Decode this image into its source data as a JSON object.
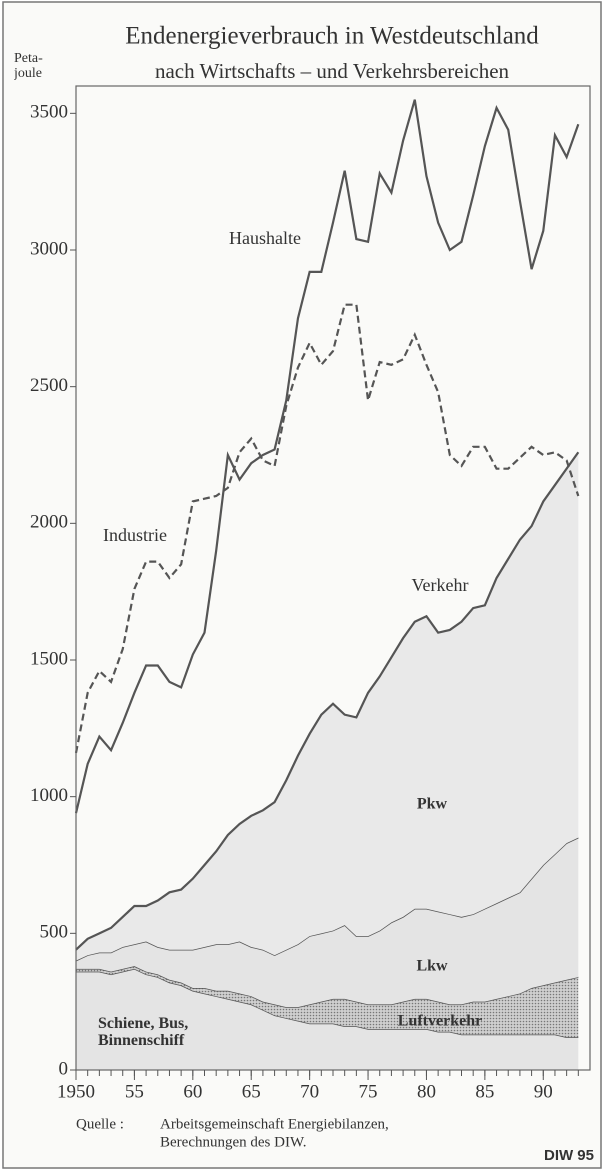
{
  "chart_data": {
    "type": "line",
    "title": "Endenergieverbrauch in Westdeutschland",
    "subtitle": "nach Wirtschafts – und Verkehrsbereichen",
    "y_label": "Peta-joule",
    "source_label": "Quelle :",
    "source": [
      "Arbeitsgemeinschaft Energiebilanzen,",
      "Berechnungen des DIW."
    ],
    "credit": "DIW 95",
    "xlim": [
      1950,
      1994
    ],
    "xticks": [
      1950,
      {
        "value": 1955,
        "label": "55"
      },
      {
        "value": 1960,
        "label": "60"
      },
      {
        "value": 1965,
        "label": "65"
      },
      {
        "value": 1970,
        "label": "70"
      },
      {
        "value": 1975,
        "label": "75"
      },
      {
        "value": 1980,
        "label": "80"
      },
      {
        "value": 1985,
        "label": "85"
      },
      {
        "value": 1990,
        "label": "90"
      }
    ],
    "ylim": [
      0,
      3600
    ],
    "yticks": [
      0,
      500,
      1000,
      1500,
      2000,
      2500,
      3000,
      3500
    ],
    "x": [
      1950,
      1951,
      1952,
      1953,
      1954,
      1955,
      1956,
      1957,
      1958,
      1959,
      1960,
      1961,
      1962,
      1963,
      1964,
      1965,
      1966,
      1967,
      1968,
      1969,
      1970,
      1971,
      1972,
      1973,
      1974,
      1975,
      1976,
      1977,
      1978,
      1979,
      1980,
      1981,
      1982,
      1983,
      1984,
      1985,
      1986,
      1987,
      1988,
      1989,
      1990,
      1991,
      1992,
      1993
    ],
    "series": [
      {
        "name": "Haushalte",
        "color": "#555555",
        "dash": false,
        "values": [
          940,
          1120,
          1220,
          1170,
          1270,
          1380,
          1480,
          1480,
          1420,
          1400,
          1520,
          1600,
          1900,
          2250,
          2160,
          2220,
          2250,
          2270,
          2450,
          2750,
          2920,
          2920,
          3100,
          3290,
          3040,
          3030,
          3280,
          3210,
          3400,
          3550,
          3270,
          3100,
          3000,
          3030,
          3200,
          3380,
          3520,
          3440,
          3180,
          2930,
          3070,
          3420,
          3340,
          3460
        ]
      },
      {
        "name": "Industrie",
        "color": "#555555",
        "dash": true,
        "values": [
          1160,
          1380,
          1460,
          1420,
          1540,
          1760,
          1860,
          1860,
          1800,
          1850,
          2080,
          2090,
          2100,
          2130,
          2260,
          2310,
          2230,
          2210,
          2430,
          2570,
          2660,
          2580,
          2630,
          2800,
          2800,
          2450,
          2590,
          2580,
          2600,
          2690,
          2580,
          2480,
          2250,
          2210,
          2280,
          2280,
          2200,
          2200,
          2240,
          2280,
          2250,
          2260,
          2230,
          2100
        ]
      }
    ],
    "stack_total_label": "Verkehr",
    "stacked": [
      {
        "name": "Schiene, Bus, Binnenschiff",
        "color": "#e4e4e4",
        "values": [
          360,
          360,
          360,
          350,
          360,
          370,
          350,
          340,
          320,
          310,
          290,
          280,
          270,
          260,
          250,
          240,
          220,
          200,
          190,
          180,
          170,
          170,
          170,
          160,
          160,
          150,
          150,
          150,
          150,
          150,
          150,
          140,
          140,
          130,
          130,
          130,
          130,
          130,
          130,
          130,
          130,
          130,
          120,
          120
        ]
      },
      {
        "name": "Luftverkehr",
        "color": "#bdbdbd",
        "values": [
          10,
          10,
          10,
          10,
          10,
          10,
          10,
          10,
          10,
          10,
          10,
          20,
          20,
          30,
          30,
          30,
          30,
          40,
          40,
          50,
          70,
          80,
          90,
          100,
          90,
          90,
          90,
          90,
          100,
          110,
          110,
          110,
          100,
          110,
          120,
          120,
          130,
          140,
          150,
          170,
          180,
          190,
          210,
          220
        ]
      },
      {
        "name": "Lkw",
        "color": "#e4e4e4",
        "values": [
          30,
          50,
          60,
          70,
          80,
          80,
          110,
          100,
          110,
          120,
          140,
          150,
          170,
          170,
          190,
          180,
          190,
          180,
          210,
          230,
          250,
          250,
          250,
          270,
          240,
          250,
          270,
          300,
          310,
          330,
          330,
          330,
          330,
          320,
          320,
          340,
          350,
          360,
          370,
          400,
          440,
          470,
          500,
          510
        ]
      },
      {
        "name": "Pkw",
        "color": "#e9e9e9",
        "values": [
          40,
          60,
          70,
          90,
          110,
          140,
          130,
          170,
          210,
          220,
          260,
          300,
          340,
          400,
          430,
          480,
          510,
          560,
          620,
          690,
          740,
          800,
          830,
          770,
          800,
          890,
          930,
          970,
          1020,
          1050,
          1070,
          1020,
          1040,
          1080,
          1120,
          1110,
          1190,
          1240,
          1290,
          1290,
          1330,
          1350,
          1370,
          1410
        ]
      }
    ]
  }
}
